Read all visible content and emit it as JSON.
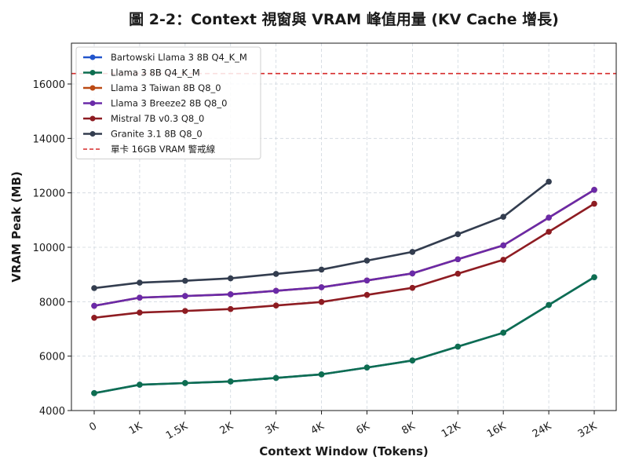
{
  "chart_data": {
    "type": "line",
    "title": "圖 2-2：Context 視窗與 VRAM 峰值用量 (KV Cache 增長)",
    "xlabel": "Context Window (Tokens)",
    "ylabel": "VRAM Peak (MB)",
    "categories": [
      "0",
      "1K",
      "1.5K",
      "2K",
      "3K",
      "4K",
      "6K",
      "8K",
      "12K",
      "16K",
      "24K",
      "32K"
    ],
    "yticks": [
      "4000",
      "6000",
      "8000",
      "10000",
      "12000",
      "14000",
      "16000"
    ],
    "ylim": [
      4000,
      17500
    ],
    "grid": true,
    "legend_position": "top-left",
    "series": [
      {
        "name": "Bartowski Llama 3 8B Q4_K_M",
        "color": "#2255cc",
        "values": [
          4640,
          4950,
          5010,
          5070,
          5200,
          5330,
          5580,
          5840,
          6350,
          6860,
          7880,
          8900
        ]
      },
      {
        "name": "Llama 3 8B Q4_K_M",
        "color": "#0e6e50",
        "values": [
          4640,
          4950,
          5010,
          5070,
          5200,
          5330,
          5580,
          5840,
          6350,
          6860,
          7880,
          8900
        ]
      },
      {
        "name": "Llama 3 Taiwan 8B Q8_0",
        "color": "#bb4a14",
        "values": [
          7850,
          8150,
          8210,
          8270,
          8400,
          8530,
          8780,
          9040,
          9560,
          10070,
          11090,
          12110
        ]
      },
      {
        "name": "Llama 3 Breeze2 8B Q8_0",
        "color": "#6a2aa8",
        "values": [
          7850,
          8150,
          8210,
          8270,
          8400,
          8530,
          8780,
          9040,
          9560,
          10070,
          11090,
          12110
        ]
      },
      {
        "name": "Mistral 7B v0.3 Q8_0",
        "color": "#8e1c22",
        "values": [
          7410,
          7600,
          7660,
          7730,
          7860,
          7990,
          8250,
          8510,
          9030,
          9540,
          10570,
          11600
        ]
      },
      {
        "name": "Granite 3.1 8B Q8_0",
        "color": "#333d4f",
        "values": [
          8500,
          8700,
          8770,
          8860,
          9020,
          9180,
          9510,
          9830,
          10480,
          11120,
          12410,
          null
        ]
      }
    ],
    "reference_line": {
      "name": "單卡 16GB VRAM 警戒線",
      "value": 16384,
      "color": "#d62b2b"
    }
  }
}
